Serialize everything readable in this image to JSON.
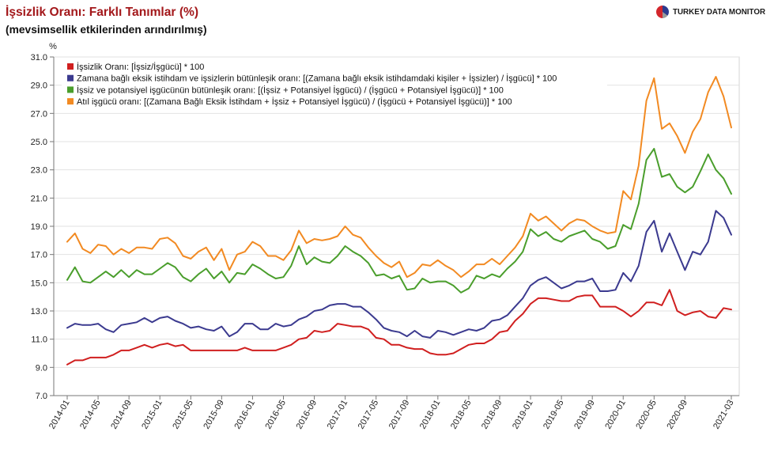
{
  "page": {
    "logo_text": "TURKEY DATA MONITOR",
    "logo_colors": [
      "#d3262c",
      "#2c3b8e",
      "#9a9a9a"
    ]
  },
  "chart_data": {
    "type": "line",
    "title": "İşsizlik Oranı: Farklı Tanımlar (%)",
    "subtitle": "(mevsimsellik etkilerinden arındırılmış)",
    "ylabel": "%",
    "ylim": [
      7,
      31
    ],
    "y_ticks": [
      "31.0",
      "29.0",
      "27.0",
      "25.0",
      "23.0",
      "21.0",
      "19.0",
      "17.0",
      "15.0",
      "13.0",
      "11.0",
      "9.0",
      "7.0"
    ],
    "x_tick_labels": [
      "2014-01",
      "2014-05",
      "2014-09",
      "2015-01",
      "2015-05",
      "2015-09",
      "2016-01",
      "2016-05",
      "2016-09",
      "2017-01",
      "2017-05",
      "2017-09",
      "2018-01",
      "2018-05",
      "2018-09",
      "2019-01",
      "2019-05",
      "2019-09",
      "2020-01",
      "2020-05",
      "2020-09",
      "2021-03"
    ],
    "grid": true,
    "legend_position": "top-left",
    "x": [
      "2014-01",
      "2014-02",
      "2014-03",
      "2014-04",
      "2014-05",
      "2014-06",
      "2014-07",
      "2014-08",
      "2014-09",
      "2014-10",
      "2014-11",
      "2014-12",
      "2015-01",
      "2015-02",
      "2015-03",
      "2015-04",
      "2015-05",
      "2015-06",
      "2015-07",
      "2015-08",
      "2015-09",
      "2015-10",
      "2015-11",
      "2015-12",
      "2016-01",
      "2016-02",
      "2016-03",
      "2016-04",
      "2016-05",
      "2016-06",
      "2016-07",
      "2016-08",
      "2016-09",
      "2016-10",
      "2016-11",
      "2016-12",
      "2017-01",
      "2017-02",
      "2017-03",
      "2017-04",
      "2017-05",
      "2017-06",
      "2017-07",
      "2017-08",
      "2017-09",
      "2017-10",
      "2017-11",
      "2017-12",
      "2018-01",
      "2018-02",
      "2018-03",
      "2018-04",
      "2018-05",
      "2018-06",
      "2018-07",
      "2018-08",
      "2018-09",
      "2018-10",
      "2018-11",
      "2018-12",
      "2019-01",
      "2019-02",
      "2019-03",
      "2019-04",
      "2019-05",
      "2019-06",
      "2019-07",
      "2019-08",
      "2019-09",
      "2019-10",
      "2019-11",
      "2019-12",
      "2020-01",
      "2020-02",
      "2020-03",
      "2020-04",
      "2020-05",
      "2020-06",
      "2020-07",
      "2020-08",
      "2020-09",
      "2020-10",
      "2020-11",
      "2020-12",
      "2021-01",
      "2021-02",
      "2021-03"
    ],
    "series": [
      {
        "name": "İşsizlik Oranı: [İşsiz/İşgücü] * 100",
        "color": "#d01f1f",
        "values": [
          9.2,
          9.5,
          9.5,
          9.7,
          9.7,
          9.7,
          9.9,
          10.2,
          10.2,
          10.4,
          10.6,
          10.4,
          10.6,
          10.7,
          10.5,
          10.6,
          10.2,
          10.2,
          10.2,
          10.2,
          10.2,
          10.2,
          10.2,
          10.4,
          10.2,
          10.2,
          10.2,
          10.2,
          10.4,
          10.6,
          11.0,
          11.1,
          11.6,
          11.5,
          11.6,
          12.1,
          12.0,
          11.9,
          11.9,
          11.7,
          11.1,
          11.0,
          10.6,
          10.6,
          10.4,
          10.3,
          10.3,
          10.0,
          9.9,
          9.9,
          10.0,
          10.3,
          10.6,
          10.7,
          10.7,
          11.0,
          11.5,
          11.6,
          12.3,
          12.8,
          13.5,
          13.9,
          13.9,
          13.8,
          13.7,
          13.7,
          14.0,
          14.1,
          14.1,
          13.3,
          13.3,
          13.3,
          13.0,
          12.6,
          13.0,
          13.6,
          13.6,
          13.4,
          14.5,
          13.0,
          12.7,
          12.9,
          13.0,
          12.6,
          12.5,
          13.2,
          13.1
        ]
      },
      {
        "name": "Zamana bağlı eksik istihdam ve işsizlerin bütünleşik oranı: [(Zamana bağlı eksik istihdamdaki kişiler + İşsizler) / İşgücü] * 100",
        "color": "#3b3a8f",
        "values": [
          11.8,
          12.1,
          12.0,
          12.0,
          12.1,
          11.7,
          11.5,
          12.0,
          12.1,
          12.2,
          12.5,
          12.2,
          12.5,
          12.6,
          12.3,
          12.1,
          11.8,
          11.9,
          11.7,
          11.6,
          11.9,
          11.2,
          11.5,
          12.1,
          12.1,
          11.7,
          11.7,
          12.1,
          11.9,
          12.0,
          12.4,
          12.6,
          13.0,
          13.1,
          13.4,
          13.5,
          13.5,
          13.3,
          13.3,
          12.9,
          12.4,
          11.8,
          11.6,
          11.5,
          11.2,
          11.6,
          11.2,
          11.1,
          11.6,
          11.5,
          11.3,
          11.5,
          11.7,
          11.6,
          11.8,
          12.3,
          12.4,
          12.7,
          13.3,
          13.9,
          14.8,
          15.2,
          15.4,
          15.0,
          14.6,
          14.8,
          15.1,
          15.1,
          15.3,
          14.4,
          14.4,
          14.5,
          15.7,
          15.1,
          16.2,
          18.6,
          19.4,
          17.2,
          18.5,
          17.2,
          15.9,
          17.2,
          17.0,
          17.9,
          20.1,
          19.6,
          18.4
        ]
      },
      {
        "name": "İşsiz ve potansiyel işgücünün bütünleşik oranı: [(İşsiz + Potansiyel İşgücü) / (İşgücü + Potansiyel İşgücü)] * 100",
        "color": "#4a9e2c",
        "values": [
          15.2,
          16.1,
          15.1,
          15.0,
          15.4,
          15.8,
          15.4,
          15.9,
          15.4,
          15.9,
          15.6,
          15.6,
          16.0,
          16.4,
          16.1,
          15.4,
          15.1,
          15.6,
          16.0,
          15.3,
          15.8,
          15.0,
          15.7,
          15.6,
          16.3,
          16.0,
          15.6,
          15.3,
          15.4,
          16.2,
          17.6,
          16.3,
          16.8,
          16.5,
          16.4,
          16.9,
          17.6,
          17.2,
          16.9,
          16.4,
          15.5,
          15.6,
          15.3,
          15.5,
          14.5,
          14.6,
          15.3,
          15.0,
          15.1,
          15.1,
          14.8,
          14.3,
          14.6,
          15.5,
          15.3,
          15.6,
          15.4,
          16.0,
          16.5,
          17.2,
          18.8,
          18.3,
          18.6,
          18.1,
          17.9,
          18.3,
          18.5,
          18.7,
          18.1,
          17.9,
          17.4,
          17.6,
          19.1,
          18.8,
          20.6,
          23.7,
          24.5,
          22.5,
          22.7,
          21.8,
          21.4,
          21.8,
          22.9,
          24.1,
          23.0,
          22.4,
          21.3
        ]
      },
      {
        "name": "Atıl işgücü oranı: [(Zamana Bağlı Eksik İstihdam + İşsiz + Potansiyel İşgücü) / (İşgücü + Potansiyel İşgücü)] * 100",
        "color": "#f28a22",
        "values": [
          17.9,
          18.5,
          17.4,
          17.1,
          17.7,
          17.6,
          17.0,
          17.4,
          17.1,
          17.5,
          17.5,
          17.4,
          18.1,
          18.2,
          17.8,
          16.9,
          16.7,
          17.2,
          17.5,
          16.6,
          17.4,
          15.9,
          17.0,
          17.2,
          17.9,
          17.6,
          16.9,
          16.9,
          16.6,
          17.3,
          18.7,
          17.8,
          18.1,
          18.0,
          18.1,
          18.3,
          19.0,
          18.4,
          18.2,
          17.5,
          16.9,
          16.4,
          16.1,
          16.5,
          15.4,
          15.7,
          16.3,
          16.2,
          16.6,
          16.2,
          15.9,
          15.4,
          15.8,
          16.3,
          16.3,
          16.7,
          16.3,
          16.9,
          17.5,
          18.3,
          19.9,
          19.4,
          19.7,
          19.2,
          18.7,
          19.2,
          19.5,
          19.4,
          19.0,
          18.7,
          18.5,
          18.6,
          21.5,
          20.9,
          23.3,
          27.9,
          29.5,
          25.9,
          26.3,
          25.4,
          24.2,
          25.7,
          26.6,
          28.5,
          29.6,
          28.2,
          26.0
        ]
      }
    ]
  }
}
